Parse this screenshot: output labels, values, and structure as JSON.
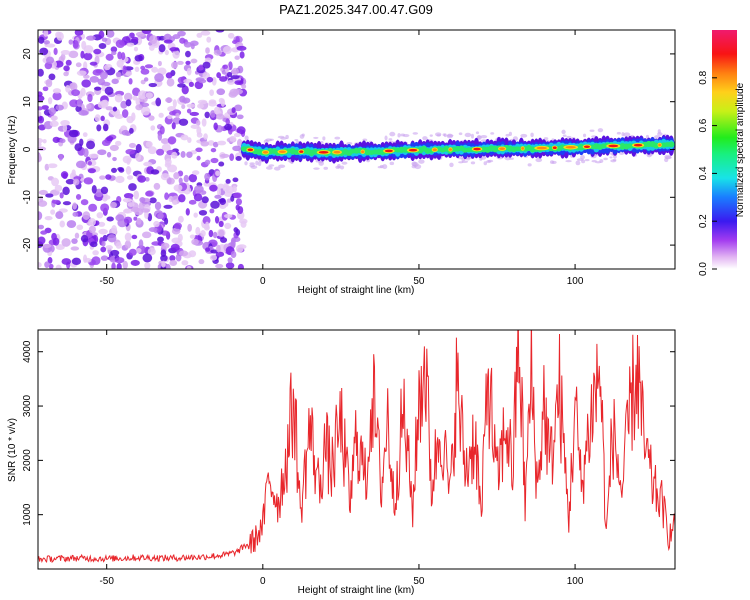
{
  "title": "PAZ1.2025.347.00.47.G09",
  "chart_data": [
    {
      "type": "heatmap",
      "xlabel": "Height of straight line (km)",
      "ylabel": "Frequency (Hz)",
      "xlim": [
        -72,
        132
      ],
      "ylim": [
        -25,
        25
      ],
      "xticks": [
        -50,
        0,
        50,
        100
      ],
      "yticks": [
        -20,
        -10,
        0,
        10,
        20
      ],
      "colorbar": {
        "label": "Normalized spectral amplitude",
        "ticks": [
          0.0,
          0.2,
          0.4,
          0.6,
          0.8
        ],
        "range": [
          0,
          1
        ]
      },
      "noise_region_km": [
        -72,
        -6
      ],
      "signal_ridge": {
        "x_km": [
          -6,
          0,
          10,
          20,
          30,
          40,
          50,
          60,
          70,
          80,
          90,
          100,
          110,
          120,
          132
        ],
        "freq_hz": [
          0.2,
          -0.6,
          -0.4,
          -0.6,
          -0.5,
          -0.3,
          -0.1,
          0.0,
          0.1,
          0.2,
          0.3,
          0.5,
          0.7,
          0.9,
          1.0
        ]
      }
    },
    {
      "type": "line",
      "xlabel": "Height of straight line (km)",
      "ylabel": "SNR (10 * v/v)",
      "xlim": [
        -72,
        132
      ],
      "ylim": [
        0,
        4400
      ],
      "xticks": [
        -50,
        0,
        50,
        100
      ],
      "yticks": [
        1000,
        2000,
        3000,
        4000
      ],
      "series": [
        {
          "name": "SNR",
          "color": "#e8262b",
          "x": [
            -72,
            -60,
            -50,
            -40,
            -30,
            -20,
            -12,
            -8,
            -6,
            -3,
            0,
            2,
            5,
            8,
            10,
            12,
            15,
            18,
            20,
            22,
            25,
            28,
            30,
            33,
            35,
            38,
            40,
            42,
            45,
            48,
            50,
            52,
            54,
            57,
            60,
            62,
            65,
            68,
            70,
            72,
            75,
            78,
            80,
            82,
            84,
            86,
            88,
            90,
            92,
            95,
            98,
            100,
            102,
            105,
            108,
            110,
            112,
            115,
            118,
            120,
            122,
            125,
            128,
            130,
            132
          ],
          "y": [
            180,
            200,
            190,
            210,
            200,
            220,
            260,
            320,
            420,
            500,
            800,
            1700,
            1200,
            2200,
            3200,
            1000,
            2600,
            1500,
            2300,
            1800,
            2700,
            1200,
            2500,
            1600,
            3300,
            1500,
            2800,
            1200,
            2900,
            1100,
            3100,
            3900,
            1500,
            2700,
            1300,
            3400,
            1800,
            2500,
            900,
            3700,
            1600,
            2700,
            1800,
            4300,
            1200,
            3600,
            1400,
            3100,
            1900,
            3300,
            900,
            3000,
            1500,
            2800,
            3700,
            600,
            2600,
            1400,
            3100,
            3700,
            2300,
            1500,
            1200,
            600,
            800
          ]
        }
      ]
    }
  ]
}
